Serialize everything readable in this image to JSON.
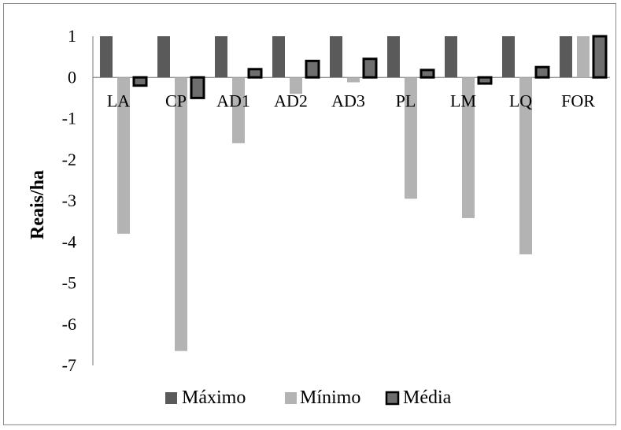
{
  "chart_data": {
    "type": "bar",
    "ylabel": "Reais/ha",
    "ylim": [
      -7,
      1
    ],
    "yticks": [
      1,
      0,
      -1,
      -2,
      -3,
      -4,
      -5,
      -6,
      -7
    ],
    "categories": [
      "LA",
      "CP",
      "AD1",
      "AD2",
      "AD3",
      "PL",
      "LM",
      "LQ",
      "FOR"
    ],
    "series": [
      {
        "name": "Máximo",
        "color": "#5a5a5a",
        "values": [
          1,
          1,
          1,
          1,
          1,
          1,
          1,
          1,
          1
        ]
      },
      {
        "name": "Mínimo",
        "color": "#b3b3b3",
        "values": [
          -3.8,
          -6.65,
          -1.6,
          -0.4,
          -0.12,
          -2.95,
          -3.42,
          -4.3,
          1
        ]
      },
      {
        "name": "Média",
        "color": "#6e6e6e",
        "values": [
          -0.2,
          -0.5,
          0.2,
          0.4,
          0.45,
          0.18,
          -0.15,
          0.25,
          1
        ]
      }
    ],
    "legend_position": "bottom",
    "grid": false
  }
}
